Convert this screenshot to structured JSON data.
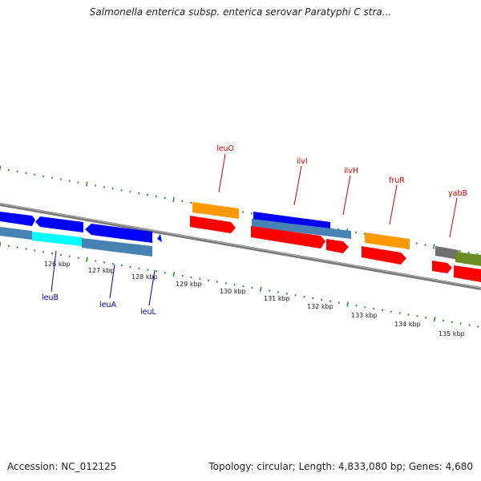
{
  "title": "Salmonella enterica subsp. enterica serovar Paratyphi C stra...",
  "footer": {
    "accession": "Accession: NC_012125",
    "summary": "Topology: circular; Length: 4,833,080 bp; Genes: 4,680"
  },
  "colors": {
    "backbone": "#888888",
    "tick": "#2e8b2e",
    "forward_label": "#cc0000",
    "reverse_label": "#0000aa",
    "cds_red": "#ff0000",
    "cds_orange": "#ff9900",
    "cds_blue": "#0000ff",
    "cds_steel": "#4682b4",
    "cds_cyan": "#00ffff",
    "cds_gray": "#707070",
    "cds_olive": "#6b8e23"
  },
  "scale": {
    "unit": "kbp",
    "ticks": [
      {
        "kbp": 126,
        "label": "126 kbp"
      },
      {
        "kbp": 127,
        "label": "127 kbp"
      },
      {
        "kbp": 128,
        "label": "128 kbp"
      },
      {
        "kbp": 129,
        "label": "129 kbp"
      },
      {
        "kbp": 130,
        "label": "130 kbp"
      },
      {
        "kbp": 131,
        "label": "131 kbp"
      },
      {
        "kbp": 132,
        "label": "132 kbp"
      },
      {
        "kbp": 133,
        "label": "133 kbp"
      },
      {
        "kbp": 134,
        "label": "134 kbp"
      },
      {
        "kbp": 135,
        "label": "135 kbp"
      }
    ]
  },
  "gene_labels": [
    {
      "name": "leuO",
      "strand": "forward"
    },
    {
      "name": "ilvI",
      "strand": "forward"
    },
    {
      "name": "ilvH",
      "strand": "forward"
    },
    {
      "name": "fruR",
      "strand": "forward"
    },
    {
      "name": "yabB",
      "strand": "forward"
    },
    {
      "name": "leuB",
      "strand": "reverse"
    },
    {
      "name": "leuA",
      "strand": "reverse"
    },
    {
      "name": "leuL",
      "strand": "reverse"
    }
  ]
}
